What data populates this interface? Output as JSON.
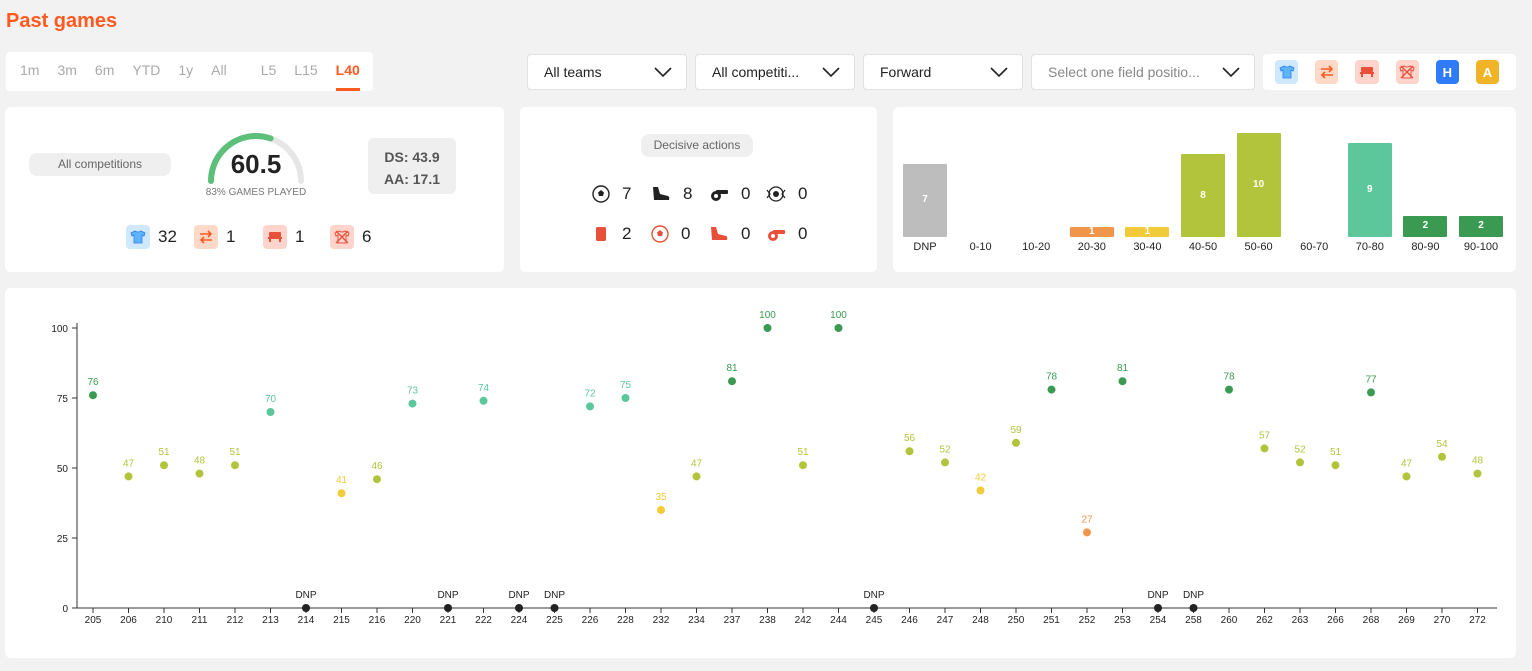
{
  "header": {
    "title": "Past games"
  },
  "period_tabs": [
    {
      "label": "1m",
      "active": false
    },
    {
      "label": "3m",
      "active": false
    },
    {
      "label": "6m",
      "active": false
    },
    {
      "label": "YTD",
      "active": false
    },
    {
      "label": "1y",
      "active": false
    },
    {
      "label": "All",
      "active": false
    },
    {
      "label": "L5",
      "active": false
    },
    {
      "label": "L15",
      "active": false
    },
    {
      "label": "L40",
      "active": true
    }
  ],
  "filters": {
    "teams": "All teams",
    "competitions": "All competiti...",
    "position": "Forward",
    "field_position_placeholder": "Select one field positio..."
  },
  "filter_icons": [
    {
      "name": "starter-shirt-icon",
      "color": "#5cb6f7"
    },
    {
      "name": "substitute-icon",
      "color": "#ff8a5c"
    },
    {
      "name": "bench-icon",
      "color": "#ff6b4a"
    },
    {
      "name": "not-in-squad-icon",
      "color": "#ff6b4a"
    },
    {
      "name": "home-icon",
      "label": "H",
      "color": "#2f7cf6"
    },
    {
      "name": "away-icon",
      "label": "A",
      "color": "#f0b429"
    }
  ],
  "summary": {
    "competition": "All competitions",
    "score": "60.5",
    "score_fraction": 0.605,
    "games_played_label": "83% GAMES PLAYED",
    "ds": "DS: 43.9",
    "aa": "AA: 17.1",
    "starter_count": "32",
    "sub_count": "1",
    "bench_count": "1",
    "not_in_squad_count": "6"
  },
  "decisive": {
    "title": "Decisive actions",
    "goals": "7",
    "assists": "8",
    "penalty_won": "0",
    "clean_sheet": "0",
    "red_card": "2",
    "own_goal": "0",
    "error_lead_to_goal": "0",
    "penalty_conceded": "0"
  },
  "histogram": {
    "bins": [
      {
        "label": "DNP",
        "count": 7,
        "value_label": "7",
        "color": "#bdbdbd"
      },
      {
        "label": "0-10",
        "count": 0,
        "value_label": "",
        "color": "#e8503a"
      },
      {
        "label": "10-20",
        "count": 0,
        "value_label": "",
        "color": "#e8503a"
      },
      {
        "label": "20-30",
        "count": 1,
        "value_label": "1",
        "color": "#f0964a"
      },
      {
        "label": "30-40",
        "count": 1,
        "value_label": "1",
        "color": "#f2cb3a"
      },
      {
        "label": "40-50",
        "count": 8,
        "value_label": "8",
        "color": "#b2c43b"
      },
      {
        "label": "50-60",
        "count": 10,
        "value_label": "10",
        "color": "#b2c43b"
      },
      {
        "label": "60-70",
        "count": 0,
        "value_label": "",
        "color": "#5cc79a"
      },
      {
        "label": "70-80",
        "count": 9,
        "value_label": "9",
        "color": "#5cc79a"
      },
      {
        "label": "80-90",
        "count": 2,
        "value_label": "2",
        "color": "#3a9a52"
      },
      {
        "label": "90-100",
        "count": 2,
        "value_label": "2",
        "color": "#3a9a52"
      }
    ]
  },
  "chart_data": {
    "type": "scatter",
    "ylim": [
      0,
      100
    ],
    "yticks": [
      0,
      25,
      50,
      75,
      100
    ],
    "x": [
      "205",
      "206",
      "210",
      "211",
      "212",
      "213",
      "214",
      "215",
      "216",
      "220",
      "221",
      "222",
      "224",
      "225",
      "226",
      "228",
      "232",
      "234",
      "237",
      "238",
      "242",
      "244",
      "245",
      "246",
      "247",
      "248",
      "250",
      "251",
      "252",
      "253",
      "254",
      "258",
      "260",
      "262",
      "263",
      "266",
      "268",
      "269",
      "270",
      "272"
    ],
    "values": [
      76,
      47,
      51,
      48,
      51,
      70,
      null,
      41,
      46,
      73,
      null,
      74,
      null,
      null,
      72,
      75,
      35,
      47,
      81,
      100,
      51,
      100,
      null,
      56,
      52,
      42,
      59,
      78,
      27,
      81,
      null,
      null,
      78,
      57,
      52,
      51,
      77,
      47,
      54,
      48
    ],
    "dnp_label": "DNP",
    "colors": {
      "dnp": "#222222",
      "band_20_30": "#f0964a",
      "band_30_45": "#f2cb3a",
      "band_45_60": "#b2c43b",
      "band_60_75": "#5cc79a",
      "band_75_plus": "#3a9a52"
    }
  }
}
